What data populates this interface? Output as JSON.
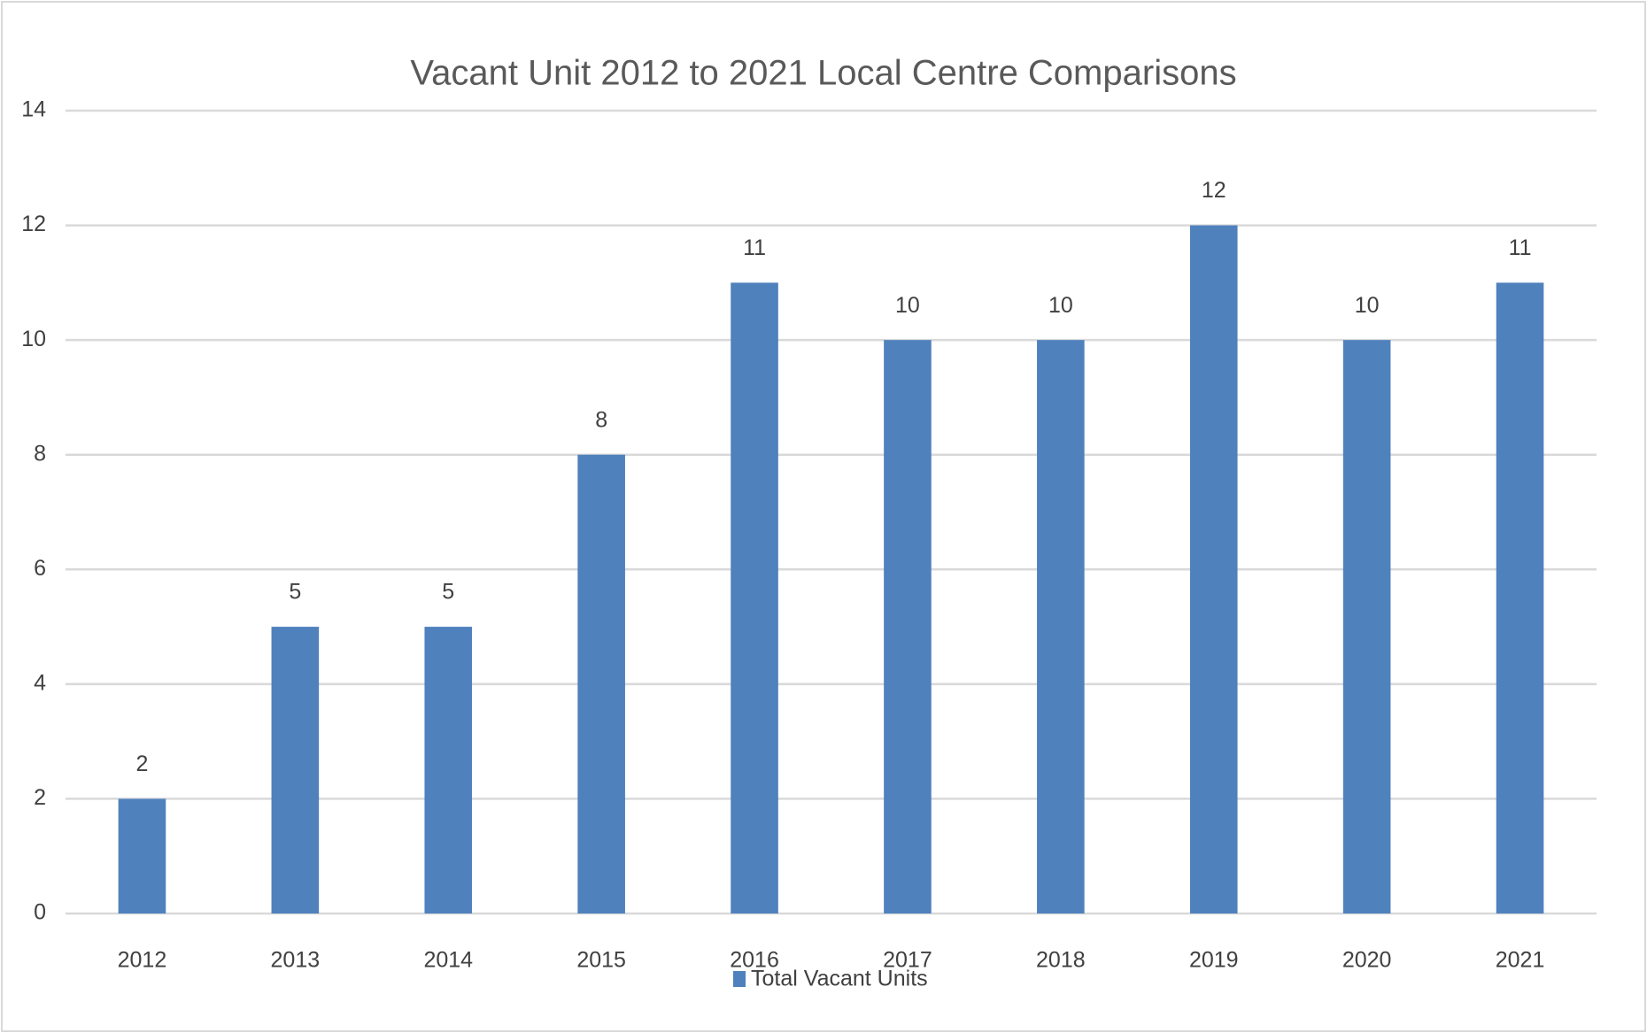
{
  "chart_data": {
    "type": "bar",
    "title": "Vacant Unit 2012 to 2021 Local Centre Comparisons",
    "categories": [
      "2012",
      "2013",
      "2014",
      "2015",
      "2016",
      "2017",
      "2018",
      "2019",
      "2020",
      "2021"
    ],
    "series": [
      {
        "name": "Total Vacant Units",
        "color": "#4f81bd",
        "values": [
          2,
          5,
          5,
          8,
          11,
          10,
          10,
          12,
          10,
          11
        ]
      }
    ],
    "ylim": [
      0,
      14
    ],
    "yticks": [
      0,
      2,
      4,
      6,
      8,
      10,
      12,
      14
    ],
    "grid": true,
    "legend": "bottom"
  }
}
